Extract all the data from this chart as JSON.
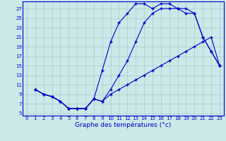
{
  "xlabel": "Graphe des températures (°c)",
  "bg_color": "#cce8e8",
  "grid_color": "#aacccc",
  "line_color": "#0000cc",
  "xlim": [
    -0.5,
    23.5
  ],
  "ylim": [
    4.5,
    28.5
  ],
  "xticks": [
    0,
    1,
    2,
    3,
    4,
    5,
    6,
    7,
    8,
    9,
    10,
    11,
    12,
    13,
    14,
    15,
    16,
    17,
    18,
    19,
    20,
    21,
    22,
    23
  ],
  "yticks": [
    5,
    7,
    9,
    11,
    13,
    15,
    17,
    19,
    21,
    23,
    25,
    27
  ],
  "line1_x": [
    1,
    2,
    3,
    4,
    5,
    6,
    7,
    8,
    9,
    10,
    11,
    12,
    13,
    14,
    15,
    16,
    17,
    18,
    19,
    20,
    21,
    22,
    23
  ],
  "line1_y": [
    10,
    9,
    8.5,
    7.5,
    6,
    6,
    6,
    8,
    14,
    20,
    24,
    26,
    28,
    28,
    27,
    28,
    28,
    27,
    27,
    26,
    21,
    18,
    15
  ],
  "line2_x": [
    1,
    2,
    3,
    4,
    5,
    6,
    7,
    8,
    9,
    10,
    11,
    12,
    13,
    14,
    15,
    16,
    17,
    18,
    19,
    20,
    21,
    22,
    23
  ],
  "line2_y": [
    10,
    9,
    8.5,
    7.5,
    6,
    6,
    6,
    8,
    7.5,
    9,
    10,
    11,
    12,
    13,
    14,
    15,
    16,
    17,
    18,
    19,
    20,
    21,
    15
  ],
  "line3_x": [
    1,
    2,
    3,
    4,
    5,
    6,
    7,
    8,
    9,
    10,
    11,
    12,
    13,
    14,
    15,
    16,
    17,
    18,
    19,
    20,
    21,
    22,
    23
  ],
  "line3_y": [
    10,
    9,
    8.5,
    7.5,
    6,
    6,
    6,
    8,
    7.5,
    10,
    13,
    16,
    20,
    24,
    26,
    27,
    27,
    27,
    26,
    26,
    21,
    18,
    15
  ],
  "xlabel_fontsize": 6.5,
  "tick_fontsize": 5.0,
  "marker": "+",
  "markersize": 3.5,
  "linewidth": 0.8
}
